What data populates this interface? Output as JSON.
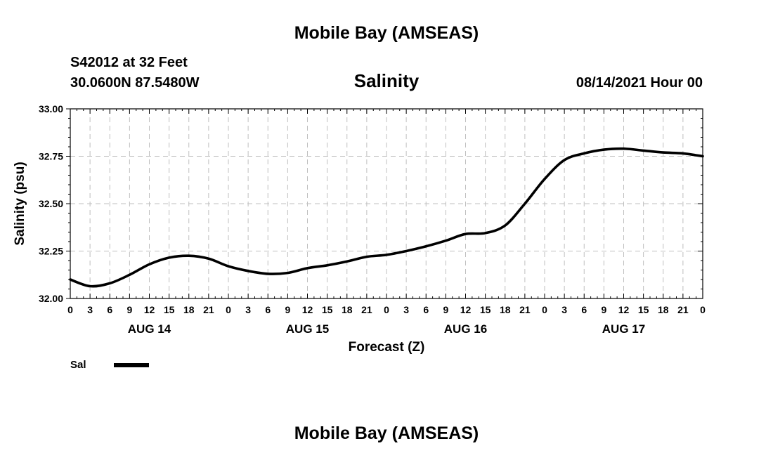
{
  "header": {
    "title": "Mobile Bay (AMSEAS)",
    "station": "S42012 at 32 Feet",
    "location": "30.0600N  87.5480W",
    "plot_title": "Salinity",
    "datetime": "08/14/2021 Hour 00"
  },
  "footer": {
    "title": "Mobile Bay (AMSEAS)"
  },
  "chart_data": {
    "type": "line",
    "title": "Salinity",
    "xlabel": "Forecast (Z)",
    "ylabel": "Salinity (psu)",
    "ylim": [
      32.0,
      33.0
    ],
    "yticks": [
      "32.00",
      "32.25",
      "32.50",
      "32.75",
      "33.00"
    ],
    "xlim_hours": [
      0,
      96
    ],
    "xtick_labels": [
      "0",
      "3",
      "6",
      "9",
      "12",
      "15",
      "18",
      "21",
      "0",
      "3",
      "6",
      "9",
      "12",
      "15",
      "18",
      "21",
      "0",
      "3",
      "6",
      "9",
      "12",
      "15",
      "18",
      "21",
      "0",
      "3",
      "6",
      "9",
      "12",
      "15",
      "18",
      "21",
      "0"
    ],
    "day_labels": [
      {
        "label": "AUG 14",
        "hour": 12
      },
      {
        "label": "AUG 15",
        "hour": 36
      },
      {
        "label": "AUG 16",
        "hour": 60
      },
      {
        "label": "AUG 17",
        "hour": 84
      }
    ],
    "grid": true,
    "legend_position": "bottom-left",
    "series": [
      {
        "name": "Sal",
        "color": "#000000",
        "x_hours": [
          0,
          3,
          6,
          9,
          12,
          15,
          18,
          21,
          24,
          27,
          30,
          33,
          36,
          39,
          42,
          45,
          48,
          51,
          54,
          57,
          60,
          63,
          66,
          69,
          72,
          75,
          78,
          81,
          84,
          87,
          90,
          93,
          96
        ],
        "values": [
          32.1,
          32.065,
          32.08,
          32.125,
          32.18,
          32.215,
          32.225,
          32.21,
          32.17,
          32.145,
          32.13,
          32.135,
          32.16,
          32.175,
          32.195,
          32.22,
          32.23,
          32.25,
          32.275,
          32.305,
          32.34,
          32.345,
          32.385,
          32.5,
          32.63,
          32.73,
          32.765,
          32.785,
          32.79,
          32.78,
          32.77,
          32.765,
          32.75
        ]
      }
    ]
  }
}
